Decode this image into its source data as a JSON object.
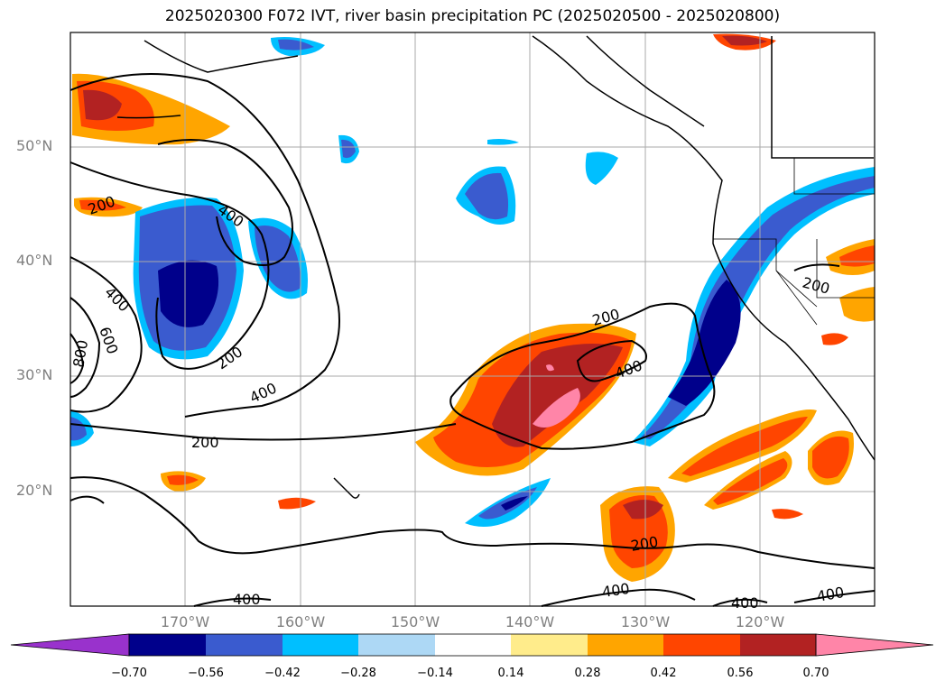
{
  "title": "2025020300 F072 IVT, river basin precipitation PC (2025020500 - 2025020800)",
  "map": {
    "extent": {
      "lon_min": -180,
      "lon_max": -110,
      "lat_min": 10,
      "lat_max": 60
    },
    "projection": "PlateCarree",
    "grid": true,
    "lat_ticks": [
      "50°N",
      "40°N",
      "30°N",
      "20°N"
    ],
    "lon_ticks": [
      "170°W",
      "160°W",
      "150°W",
      "140°W",
      "130°W",
      "120°W"
    ],
    "ivt_contour_labels": [
      "200",
      "400",
      "600",
      "800",
      "200",
      "400",
      "200",
      "200",
      "400",
      "400",
      "400",
      "400",
      "200",
      "200",
      "400"
    ]
  },
  "colorbar": {
    "ticks": [
      "−0.70",
      "−0.56",
      "−0.42",
      "−0.28",
      "−0.14",
      "0.14",
      "0.28",
      "0.42",
      "0.56",
      "0.70"
    ],
    "colors": [
      "#9932cc",
      "#00008b",
      "#3a5bcf",
      "#00bfff",
      "#add8f5",
      "#ffffff",
      "#ffec8b",
      "#ffa500",
      "#ff4500",
      "#b22222",
      "#ff85a8"
    ]
  }
}
